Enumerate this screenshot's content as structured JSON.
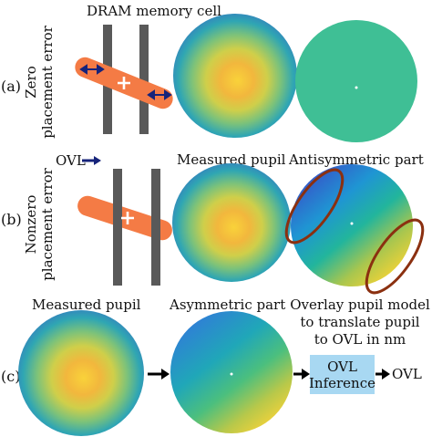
{
  "row_a": {
    "label": "(a)",
    "side_title_line1": "Zero",
    "side_title_line2": "placement error",
    "top_title": "DRAM memory cell"
  },
  "row_b": {
    "label": "(b)",
    "side_title_line1": "Nonzero",
    "side_title_line2": "placement error",
    "ovl_label": "OVL",
    "title_measured": "Measured pupil",
    "title_antisym": "Antisymmetric part"
  },
  "row_c": {
    "label": "(c)",
    "title_measured": "Measured pupil",
    "title_asym": "Asymmetric part",
    "title_model_line1": "Overlay pupil model",
    "title_model_line2": "to translate pupil",
    "title_model_line3": "to OVL in nm",
    "inference_line1": "OVL",
    "inference_line2": "Inference",
    "output_label": "OVL"
  },
  "colors": {
    "bar_gray": "#595959",
    "cell_orange": "#f47b45",
    "arrow_navy": "#16237a",
    "ellipse_brown": "#8b3010",
    "uniform_pupil": "#3fbf95",
    "inference_box": "#a8d8f2",
    "pupil_blue": "#3a63c8",
    "pupil_yellow": "#f3c33a"
  }
}
